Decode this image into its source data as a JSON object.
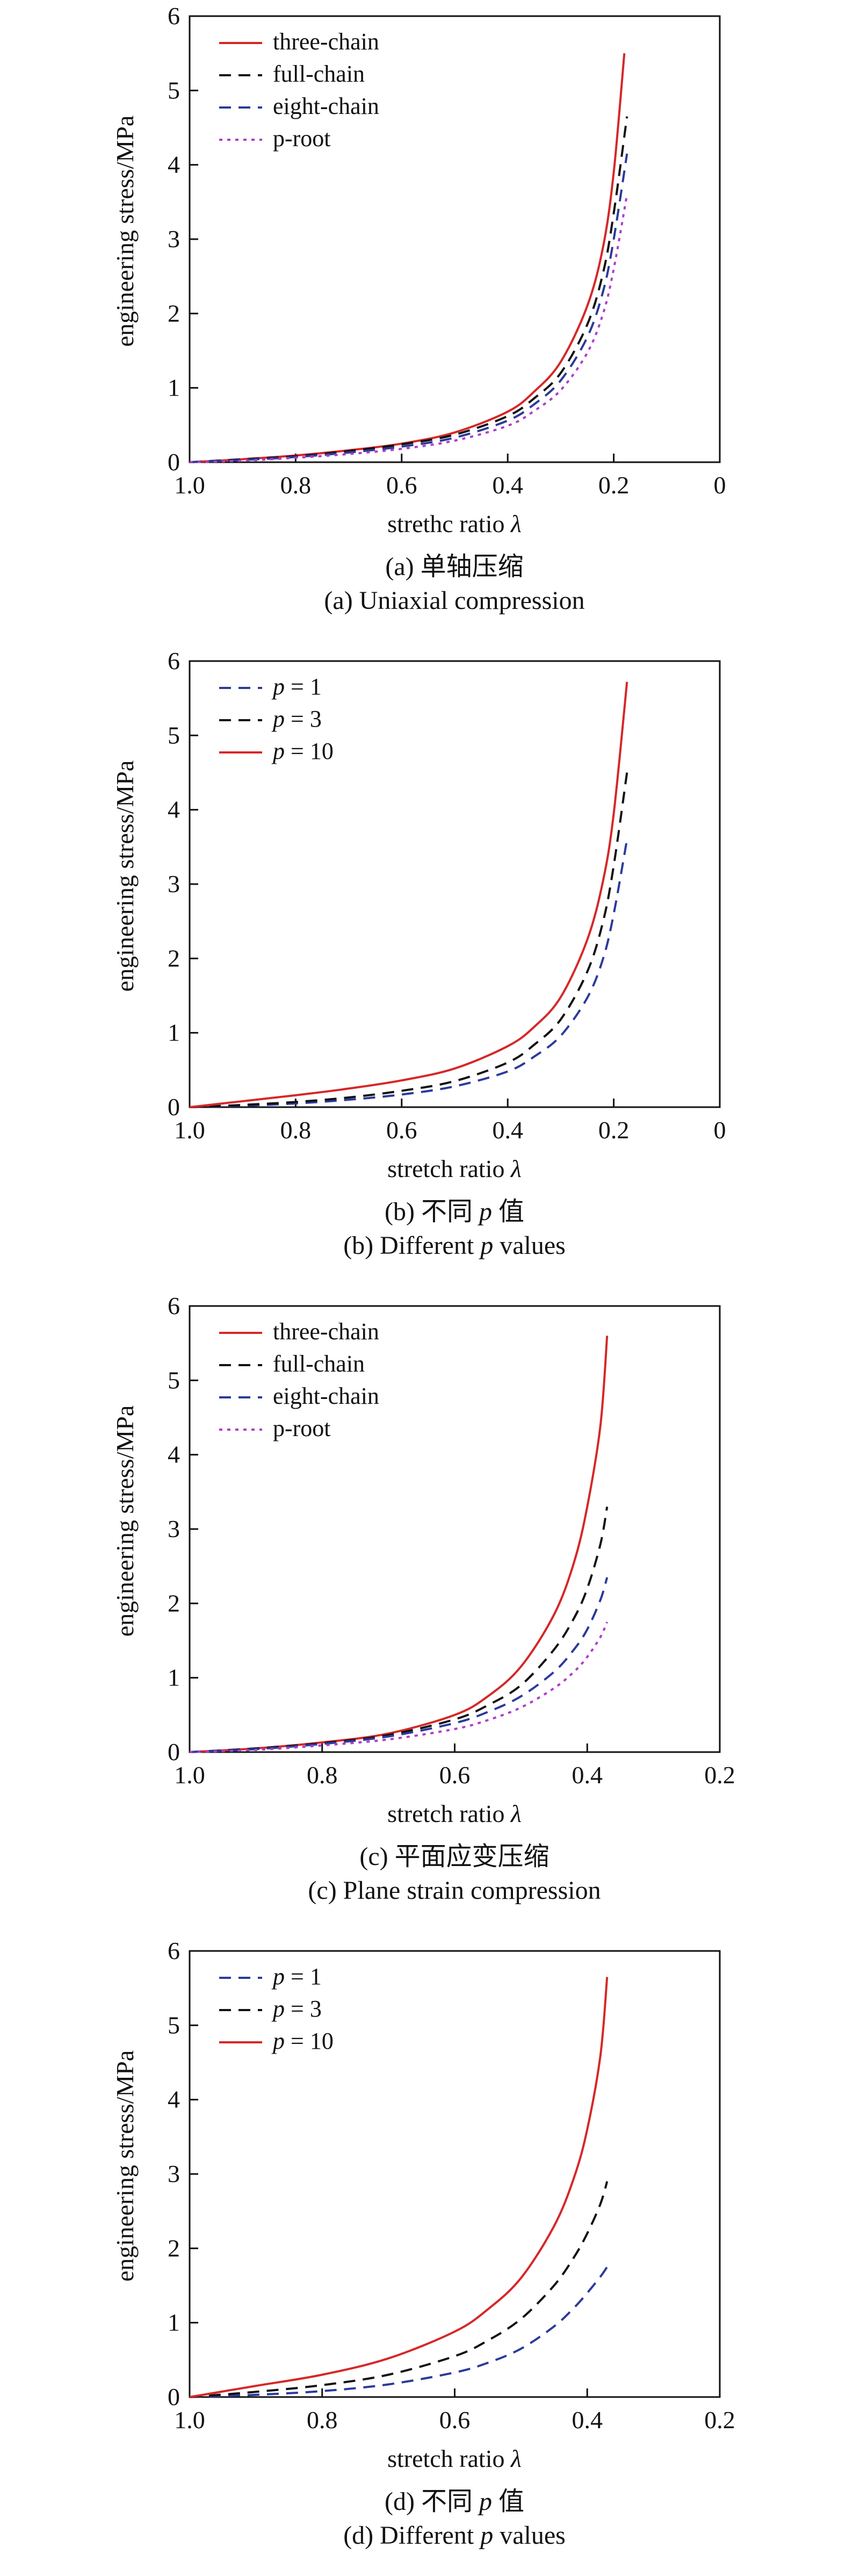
{
  "chart_data": [
    {
      "type": "line",
      "xlabel": "strethc ratio",
      "xlabel_symbol": "λ",
      "ylabel": "engineering stress/MPa",
      "xlim": [
        1.0,
        0
      ],
      "ylim": [
        0,
        6
      ],
      "x_ticks": [
        "1.0",
        "0.8",
        "0.6",
        "0.4",
        "0.2",
        "0"
      ],
      "y_ticks": [
        "0",
        "1",
        "2",
        "3",
        "4",
        "5",
        "6"
      ],
      "legend_position": "top-left",
      "grid": false,
      "caption_cn": "(a) 单轴压缩",
      "caption_en": "(a) Uniaxial compression",
      "series": [
        {
          "name": "three-chain",
          "color": "#d62728",
          "dash": "solid",
          "x": [
            1.0,
            0.9,
            0.8,
            0.7,
            0.6,
            0.5,
            0.4,
            0.35,
            0.3,
            0.25,
            0.22,
            0.2,
            0.18
          ],
          "y": [
            0,
            0.04,
            0.09,
            0.16,
            0.25,
            0.4,
            0.68,
            0.95,
            1.35,
            2.1,
            2.9,
            3.9,
            5.5
          ]
        },
        {
          "name": "full-chain",
          "color": "#111111",
          "dash": "dashed",
          "x": [
            1.0,
            0.9,
            0.8,
            0.7,
            0.6,
            0.5,
            0.4,
            0.35,
            0.3,
            0.25,
            0.22,
            0.2,
            0.175
          ],
          "y": [
            0,
            0.04,
            0.08,
            0.15,
            0.24,
            0.37,
            0.62,
            0.86,
            1.2,
            1.85,
            2.55,
            3.35,
            4.65
          ]
        },
        {
          "name": "eight-chain",
          "color": "#2b3a9b",
          "dash": "dashed",
          "x": [
            1.0,
            0.9,
            0.8,
            0.7,
            0.6,
            0.5,
            0.4,
            0.35,
            0.3,
            0.25,
            0.22,
            0.2,
            0.175
          ],
          "y": [
            0,
            0.03,
            0.07,
            0.13,
            0.21,
            0.33,
            0.56,
            0.78,
            1.1,
            1.68,
            2.3,
            3.0,
            4.15
          ]
        },
        {
          "name": "p-root",
          "color": "#b03cc8",
          "dash": "dotted",
          "x": [
            1.0,
            0.9,
            0.8,
            0.7,
            0.6,
            0.5,
            0.4,
            0.35,
            0.3,
            0.25,
            0.22,
            0.2,
            0.175
          ],
          "y": [
            0,
            0.02,
            0.06,
            0.11,
            0.18,
            0.29,
            0.49,
            0.69,
            0.97,
            1.47,
            2.0,
            2.6,
            3.6
          ]
        }
      ]
    },
    {
      "type": "line",
      "xlabel": "stretch ratio",
      "xlabel_symbol": "λ",
      "ylabel": "engineering stress/MPa",
      "xlim": [
        1.0,
        0
      ],
      "ylim": [
        0,
        6
      ],
      "x_ticks": [
        "1.0",
        "0.8",
        "0.6",
        "0.4",
        "0.2",
        "0"
      ],
      "y_ticks": [
        "0",
        "1",
        "2",
        "3",
        "4",
        "5",
        "6"
      ],
      "legend_position": "top-left",
      "grid": false,
      "caption_cn": "(b) 不同",
      "caption_cn_symbol": "p",
      "caption_cn_tail": "值",
      "caption_en": "(b) Different",
      "caption_en_symbol": "p",
      "caption_en_tail": "values",
      "series": [
        {
          "name": "p = 1",
          "legend_symbol": "p",
          "legend_tail": " = 1",
          "color": "#2b3a9b",
          "dash": "dashed",
          "x": [
            1.0,
            0.9,
            0.8,
            0.7,
            0.6,
            0.5,
            0.4,
            0.35,
            0.3,
            0.25,
            0.22,
            0.2,
            0.175
          ],
          "y": [
            0,
            0.02,
            0.05,
            0.1,
            0.17,
            0.28,
            0.48,
            0.68,
            0.96,
            1.47,
            2.0,
            2.6,
            3.6
          ]
        },
        {
          "name": "p = 3",
          "legend_symbol": "p",
          "legend_tail": " = 3",
          "color": "#111111",
          "dash": "dashed",
          "x": [
            1.0,
            0.9,
            0.8,
            0.7,
            0.6,
            0.5,
            0.4,
            0.35,
            0.3,
            0.25,
            0.22,
            0.2,
            0.175
          ],
          "y": [
            0,
            0.03,
            0.07,
            0.13,
            0.22,
            0.35,
            0.6,
            0.84,
            1.18,
            1.82,
            2.5,
            3.25,
            4.5
          ]
        },
        {
          "name": "p = 10",
          "legend_symbol": "p",
          "legend_tail": " = 10",
          "color": "#d62728",
          "dash": "solid",
          "x": [
            1.0,
            0.9,
            0.8,
            0.7,
            0.6,
            0.5,
            0.4,
            0.35,
            0.3,
            0.25,
            0.22,
            0.2,
            0.175
          ],
          "y": [
            0,
            0.08,
            0.16,
            0.25,
            0.36,
            0.52,
            0.82,
            1.08,
            1.48,
            2.25,
            3.05,
            3.95,
            5.72
          ]
        }
      ]
    },
    {
      "type": "line",
      "xlabel": "stretch ratio",
      "xlabel_symbol": "λ",
      "ylabel": "engineering stress/MPa",
      "xlim": [
        1.0,
        0.2
      ],
      "ylim": [
        0,
        6
      ],
      "x_ticks": [
        "1.0",
        "0.8",
        "0.6",
        "0.4",
        "0.2"
      ],
      "y_ticks": [
        "0",
        "1",
        "2",
        "3",
        "4",
        "5",
        "6"
      ],
      "legend_position": "top-left",
      "grid": false,
      "caption_cn": "(c) 平面应变压缩",
      "caption_en": "(c) Plane strain compression",
      "series": [
        {
          "name": "three-chain",
          "color": "#d62728",
          "dash": "solid",
          "x": [
            1.0,
            0.9,
            0.8,
            0.7,
            0.6,
            0.55,
            0.5,
            0.45,
            0.42,
            0.4,
            0.38,
            0.37
          ],
          "y": [
            0,
            0.05,
            0.13,
            0.25,
            0.5,
            0.75,
            1.15,
            1.85,
            2.55,
            3.3,
            4.4,
            5.6
          ]
        },
        {
          "name": "full-chain",
          "color": "#111111",
          "dash": "dashed",
          "x": [
            1.0,
            0.9,
            0.8,
            0.7,
            0.6,
            0.55,
            0.5,
            0.45,
            0.42,
            0.4,
            0.38,
            0.37
          ],
          "y": [
            0,
            0.05,
            0.12,
            0.23,
            0.44,
            0.63,
            0.9,
            1.38,
            1.8,
            2.2,
            2.8,
            3.3
          ]
        },
        {
          "name": "eight-chain",
          "color": "#2b3a9b",
          "dash": "dashed",
          "x": [
            1.0,
            0.9,
            0.8,
            0.7,
            0.6,
            0.55,
            0.5,
            0.45,
            0.42,
            0.4,
            0.38,
            0.37
          ],
          "y": [
            0,
            0.04,
            0.11,
            0.21,
            0.39,
            0.54,
            0.75,
            1.08,
            1.38,
            1.65,
            2.05,
            2.35
          ]
        },
        {
          "name": "p-root",
          "color": "#b03cc8",
          "dash": "dotted",
          "x": [
            1.0,
            0.9,
            0.8,
            0.7,
            0.6,
            0.55,
            0.5,
            0.45,
            0.42,
            0.4,
            0.38,
            0.37
          ],
          "y": [
            0,
            0.03,
            0.09,
            0.17,
            0.31,
            0.43,
            0.6,
            0.86,
            1.08,
            1.28,
            1.55,
            1.75
          ]
        }
      ]
    },
    {
      "type": "line",
      "xlabel": "stretch ratio",
      "xlabel_symbol": "λ",
      "ylabel": "engineering stress/MPa",
      "xlim": [
        1.0,
        0.2
      ],
      "ylim": [
        0,
        6
      ],
      "x_ticks": [
        "1.0",
        "0.8",
        "0.6",
        "0.4",
        "0.2"
      ],
      "y_ticks": [
        "0",
        "1",
        "2",
        "3",
        "4",
        "5",
        "6"
      ],
      "legend_position": "top-left",
      "grid": false,
      "caption_cn": "(d) 不同",
      "caption_cn_symbol": "p",
      "caption_cn_tail": "值",
      "caption_en": "(d) Different",
      "caption_en_symbol": "p",
      "caption_en_tail": "values",
      "series": [
        {
          "name": "p = 1",
          "legend_symbol": "p",
          "legend_tail": " = 1",
          "color": "#2b3a9b",
          "dash": "dashed",
          "x": [
            1.0,
            0.9,
            0.8,
            0.7,
            0.6,
            0.55,
            0.5,
            0.45,
            0.42,
            0.4,
            0.38,
            0.37
          ],
          "y": [
            0,
            0.03,
            0.08,
            0.17,
            0.33,
            0.46,
            0.65,
            0.95,
            1.2,
            1.4,
            1.62,
            1.75
          ]
        },
        {
          "name": "p = 3",
          "legend_symbol": "p",
          "legend_tail": " = 3",
          "color": "#111111",
          "dash": "dashed",
          "x": [
            1.0,
            0.9,
            0.8,
            0.7,
            0.6,
            0.55,
            0.5,
            0.45,
            0.42,
            0.4,
            0.38,
            0.37
          ],
          "y": [
            0,
            0.07,
            0.16,
            0.3,
            0.55,
            0.76,
            1.05,
            1.5,
            1.88,
            2.2,
            2.6,
            2.9
          ]
        },
        {
          "name": "p = 10",
          "legend_symbol": "p",
          "legend_tail": " = 10",
          "color": "#d62728",
          "dash": "solid",
          "x": [
            1.0,
            0.9,
            0.8,
            0.7,
            0.6,
            0.55,
            0.5,
            0.45,
            0.42,
            0.4,
            0.38,
            0.37
          ],
          "y": [
            0,
            0.15,
            0.3,
            0.52,
            0.88,
            1.18,
            1.6,
            2.3,
            2.95,
            3.6,
            4.6,
            5.65
          ]
        }
      ]
    }
  ]
}
